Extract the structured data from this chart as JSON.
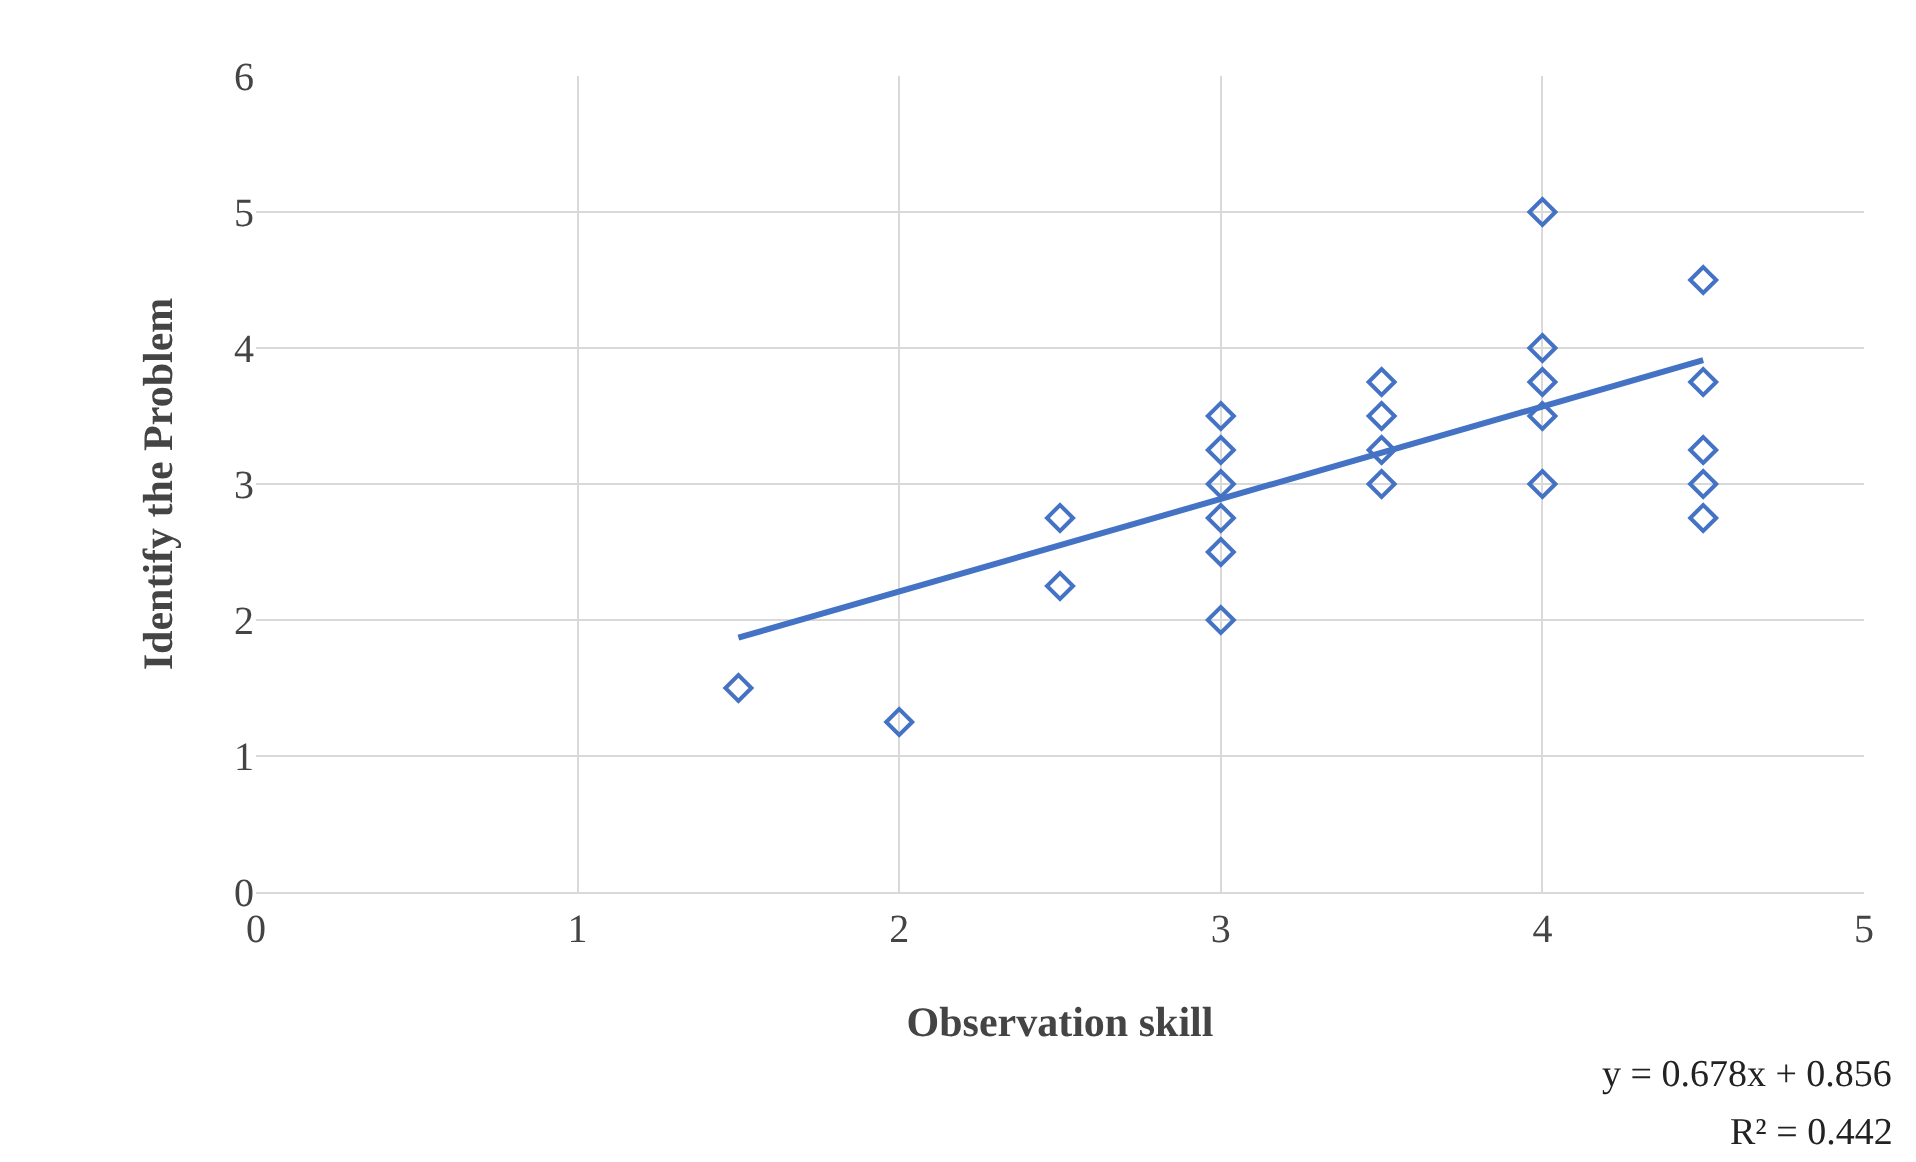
{
  "chart_data": {
    "type": "scatter",
    "xlabel": "Observation skill",
    "ylabel": "Identify the Problem",
    "xlim": [
      0,
      5
    ],
    "xticks": [
      0,
      1,
      2,
      3,
      4,
      5
    ],
    "ylim": [
      0,
      6
    ],
    "yticks": [
      0,
      1,
      2,
      3,
      4,
      5,
      6
    ],
    "grid": true,
    "annotations": [
      "y = 0.678x + 0.856",
      "R² = 0.442"
    ],
    "series": [
      {
        "marker": "diamond",
        "color": "#4472c4",
        "x": [
          1.5,
          2,
          2.5,
          2.5,
          3,
          3,
          3,
          3,
          3,
          3,
          3.5,
          3.5,
          3.5,
          3.5,
          4,
          4,
          4,
          4,
          4,
          4.5,
          4.5,
          4.5,
          4.5,
          4.5
        ],
        "values": [
          1.5,
          1.25,
          2.75,
          2.25,
          3.5,
          3.25,
          3,
          2.75,
          2.5,
          2,
          3.75,
          3.5,
          3.25,
          3,
          5,
          4,
          3.75,
          3.5,
          3,
          4.5,
          3.75,
          3.25,
          3,
          2.75
        ]
      },
      {
        "type": "line",
        "color": "#4472c4",
        "x": [
          1.5,
          4.5
        ],
        "values": [
          1.87,
          3.91
        ]
      }
    ]
  }
}
